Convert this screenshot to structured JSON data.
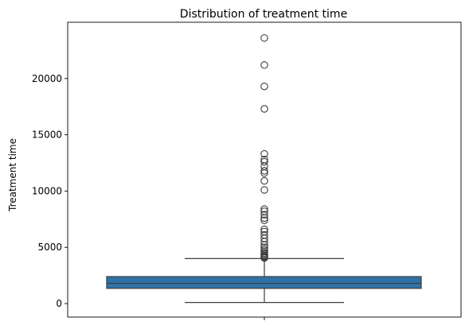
{
  "chart_data": {
    "type": "box",
    "title": "Distribution of treatment time",
    "xlabel": "",
    "ylabel": "Treatment time",
    "ylim": [
      -1200,
      25000
    ],
    "yticks": [
      0,
      5000,
      10000,
      15000,
      20000
    ],
    "grid": false,
    "colors": {
      "box": "#2f73a8",
      "line": "#3d3d3d",
      "spine": "#000000"
    },
    "box": {
      "min": 100,
      "q1": 1350,
      "median": 1800,
      "q3": 2400,
      "whisker_high": 4000
    },
    "outliers": [
      4050,
      4120,
      4200,
      4300,
      4400,
      4500,
      4650,
      4800,
      5000,
      5200,
      5500,
      5800,
      6100,
      6400,
      6600,
      7400,
      7600,
      7900,
      8200,
      8400,
      10100,
      10900,
      11600,
      11800,
      12200,
      12600,
      12800,
      13300,
      17300,
      19300,
      21200,
      23600
    ]
  }
}
